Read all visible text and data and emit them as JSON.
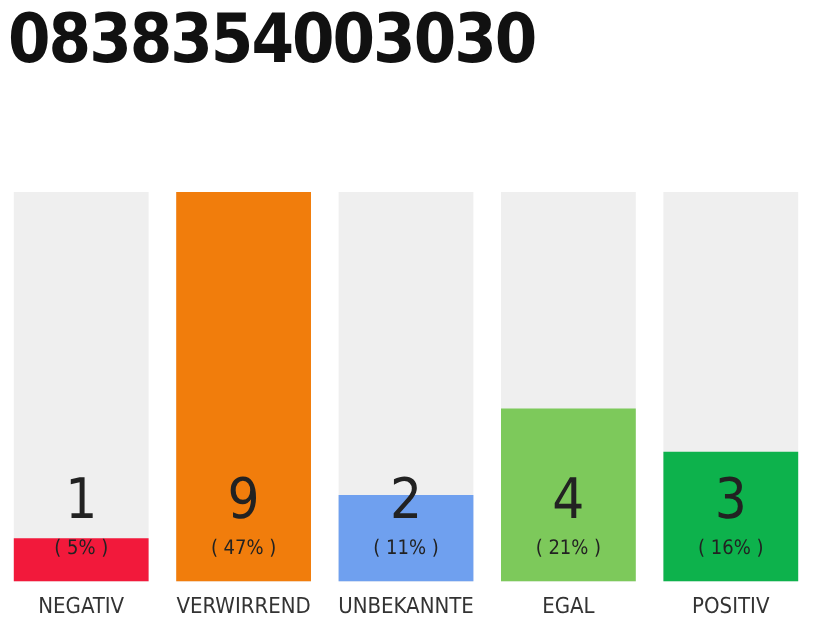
{
  "chart_data": {
    "type": "bar",
    "title": "0838354003030",
    "categories": [
      "NEGATIV",
      "VERWIRREND",
      "UNBEKANNTE",
      "EGAL",
      "POSITIV"
    ],
    "values": [
      1,
      9,
      2,
      4,
      3
    ],
    "colors": [
      "#f2193b",
      "#f17d0c",
      "#6fa0ef",
      "#7dc95b",
      "#0db24c"
    ],
    "ylim": [
      0,
      9
    ],
    "tick_labels": "x",
    "grid": false,
    "legend": false,
    "data_labels": true,
    "annotations": [
      "( 5% )",
      "( 47% )",
      "( 11% )",
      "( 21% )",
      "( 16% )"
    ]
  }
}
